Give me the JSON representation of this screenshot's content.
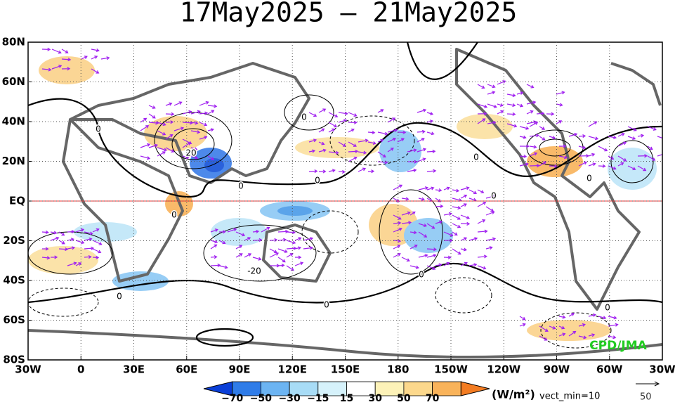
{
  "header": {
    "title": "17May2025 – 21May2025"
  },
  "map": {
    "lat_labels": [
      "80N",
      "60N",
      "40N",
      "20N",
      "EQ",
      "20S",
      "40S",
      "60S",
      "80S"
    ],
    "lon_labels": [
      "30W",
      "0",
      "30E",
      "60E",
      "90E",
      "120E",
      "150E",
      "180",
      "150W",
      "120W",
      "90W",
      "60W",
      "30W"
    ],
    "contour_labels": [
      "0",
      "0",
      "20",
      "0",
      "0",
      "0",
      "0",
      "0",
      "0",
      "-20",
      "0",
      "0",
      "0",
      "0"
    ],
    "credit": "CPD/JMA"
  },
  "colorbar": {
    "labels": [
      "−70",
      "−50",
      "−30",
      "−15",
      "15",
      "30",
      "50",
      "70"
    ],
    "unit": "(W/m²)",
    "vect_min": "vect_min=10",
    "ref_vector": "50"
  }
}
